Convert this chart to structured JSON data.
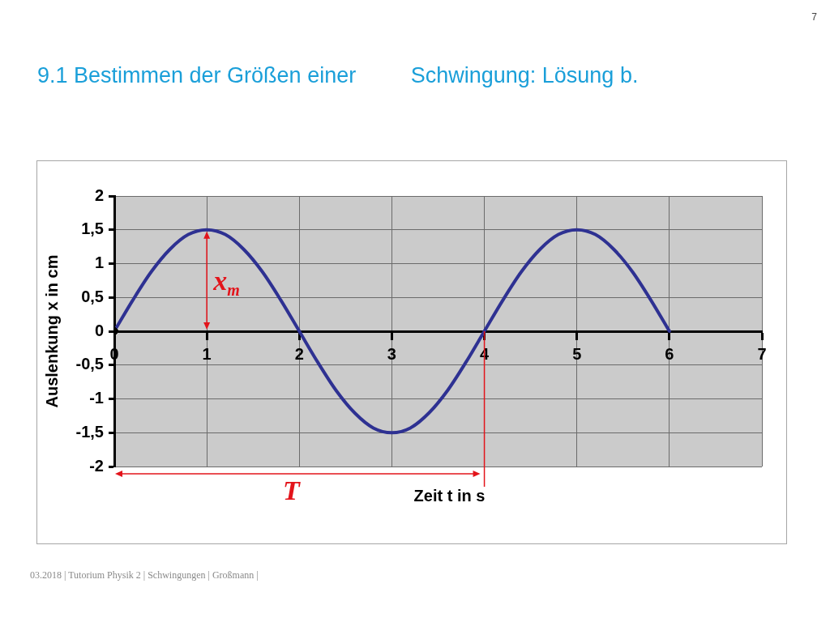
{
  "chart_data": {
    "type": "line",
    "title": "9.1 Bestimmen der Größen einer         Schwingung: Lösung b.",
    "xlabel": "Zeit t in s",
    "ylabel": "Auslenkung x in cm",
    "xlim": [
      0,
      7
    ],
    "xticks": [
      0,
      1,
      2,
      3,
      4,
      5,
      6,
      7
    ],
    "ylim": [
      -2,
      2
    ],
    "yticks": [
      -2,
      {
        "value": -1.5,
        "label": "-1,5"
      },
      -1,
      {
        "value": -0.5,
        "label": "-0,5"
      },
      0,
      {
        "value": 0.5,
        "label": "0,5"
      },
      1,
      {
        "value": 1.5,
        "label": "1,5"
      },
      2
    ],
    "grid": true,
    "series": [
      {
        "color": "#2e3192",
        "marker": "none",
        "x": [
          0,
          0.2,
          0.4,
          0.6,
          0.8,
          1,
          1.2,
          1.4,
          1.6,
          1.8,
          2,
          2.2,
          2.4,
          2.6,
          2.8,
          3,
          3.2,
          3.4,
          3.6,
          3.8,
          4,
          4.2,
          4.4,
          4.6,
          4.8,
          5,
          5.2,
          5.4,
          5.6,
          5.8,
          6
        ],
        "values": [
          0,
          0.46,
          0.88,
          1.21,
          1.43,
          1.5,
          1.43,
          1.21,
          0.88,
          0.46,
          0,
          -0.46,
          -0.88,
          -1.21,
          -1.43,
          -1.5,
          -1.43,
          -1.21,
          -0.88,
          -0.46,
          0,
          0.46,
          0.88,
          1.21,
          1.43,
          1.5,
          1.43,
          1.21,
          0.88,
          0.46,
          0
        ]
      },
      {
        "type": "scatter",
        "color": "#000000",
        "marker": "diamond",
        "x": [
          0
        ],
        "values": [
          0
        ]
      }
    ],
    "ref_lines": [
      {
        "axis": "x",
        "value": 4,
        "color": "#e3141b"
      }
    ],
    "annotations": [
      {
        "text": "x$_{m}$",
        "x": 1,
        "y": 1.5
      },
      "T",
      "7",
      "03.2018 | Tutorium Physik 2 | Schwingungen | Großmann |"
    ]
  }
}
